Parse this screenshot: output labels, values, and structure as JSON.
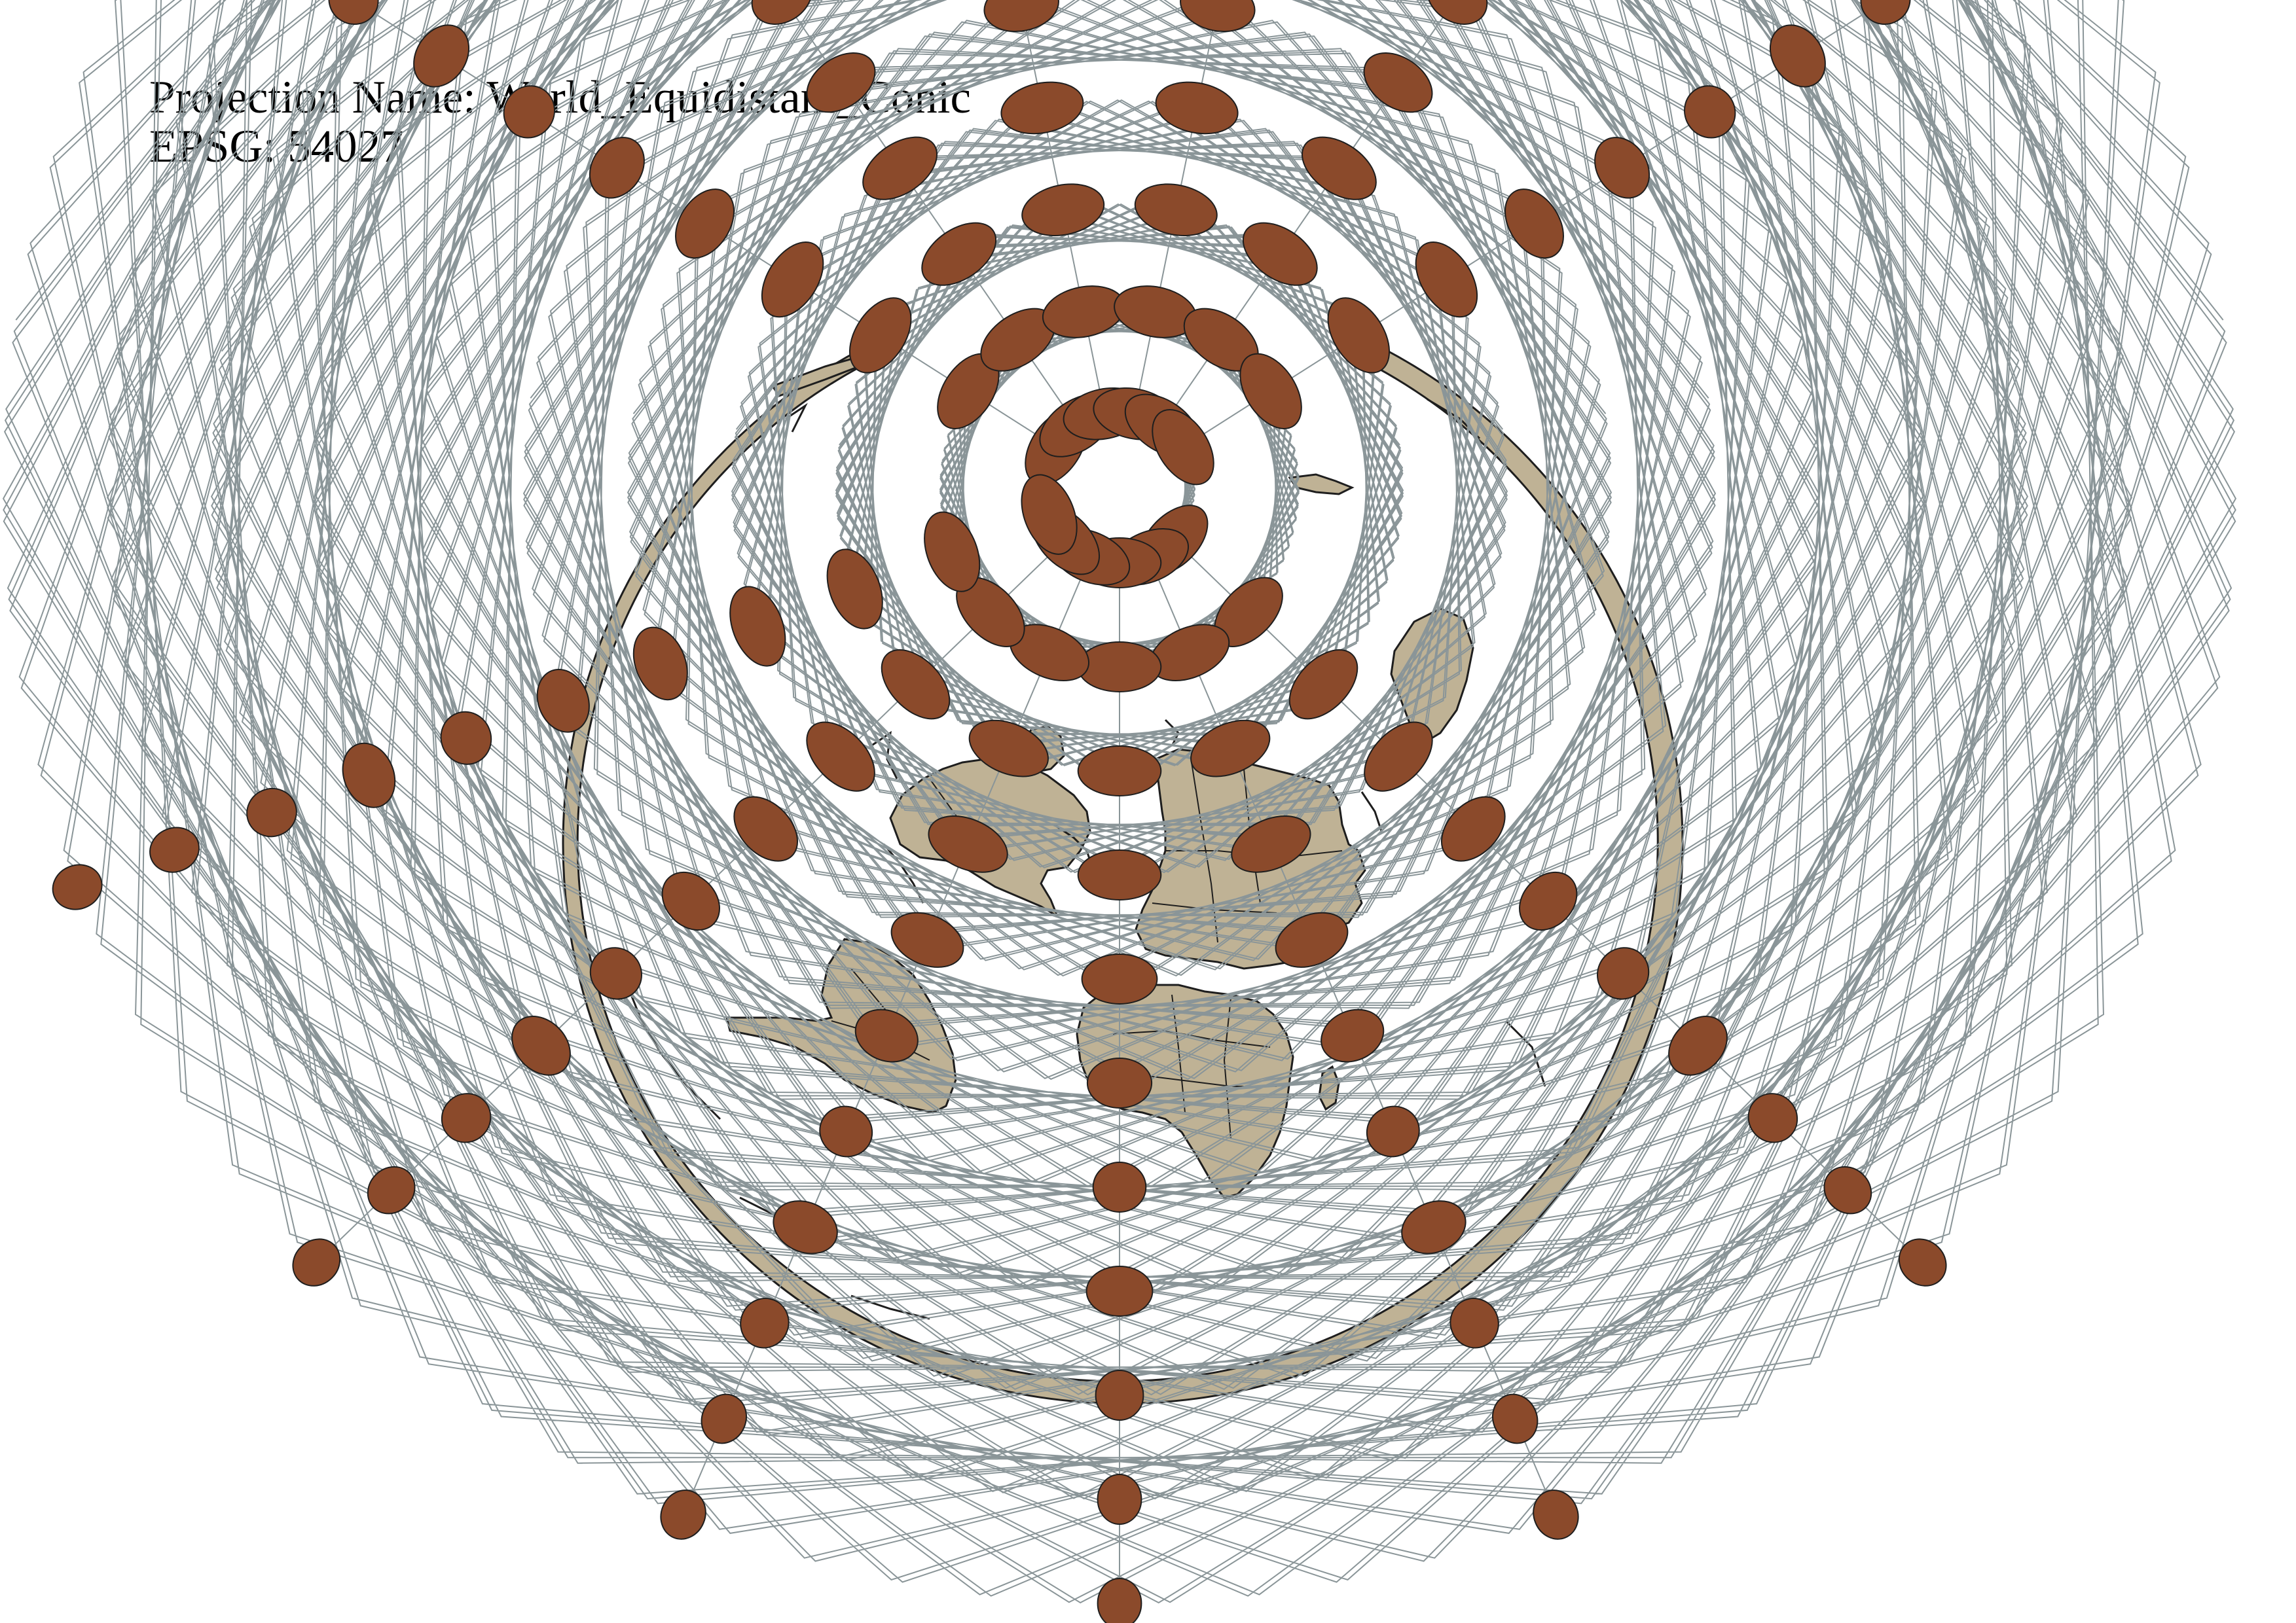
{
  "header": {
    "projection_line": "Projection Name: World_Equidistant_Conic",
    "epsg_line": "EPSG: 54027"
  },
  "map": {
    "projection": "World_Equidistant_Conic",
    "epsg": "54027",
    "colors": {
      "land": "#bfb295",
      "outline": "#1e1e1e",
      "ocean": "#ffffff",
      "graticule": "#8a9598",
      "indicatrix": "#8b4a2b"
    },
    "graticule": {
      "parallels_deg": [
        75,
        60,
        45,
        30,
        15,
        0,
        -15,
        -30,
        -45,
        -60,
        -75
      ],
      "meridian_spacing_deg": 30
    },
    "tissot_indicatrix": {
      "shape": "ellipse",
      "latitudes_deg": [
        75,
        60,
        45,
        30,
        15,
        0,
        -15,
        -30,
        -45,
        -60,
        -75
      ],
      "meridian_spacing_deg": 30
    },
    "layers": [
      "land",
      "country-borders",
      "graticule",
      "tissot-indicatrix"
    ]
  }
}
